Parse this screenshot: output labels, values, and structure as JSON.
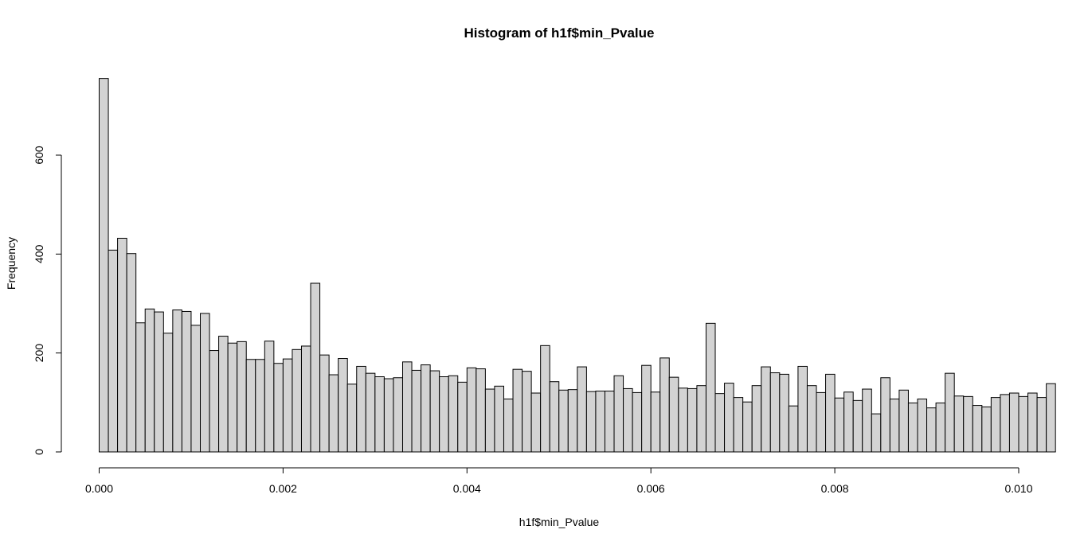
{
  "chart_data": {
    "type": "bar",
    "title": "Histogram of h1f$min_Pvalue",
    "xlabel": "h1f$min_Pvalue",
    "ylabel": "Frequency",
    "xlim": [
      0,
      0.0104
    ],
    "ylim": [
      0,
      760
    ],
    "bin_width": 0.0001,
    "x_ticks": [
      {
        "value": 0.0,
        "label": "0.000"
      },
      {
        "value": 0.002,
        "label": "0.002"
      },
      {
        "value": 0.004,
        "label": "0.004"
      },
      {
        "value": 0.006,
        "label": "0.006"
      },
      {
        "value": 0.008,
        "label": "0.008"
      },
      {
        "value": 0.01,
        "label": "0.010"
      }
    ],
    "y_ticks": [
      {
        "value": 0,
        "label": "0"
      },
      {
        "value": 200,
        "label": "200"
      },
      {
        "value": 400,
        "label": "400"
      },
      {
        "value": 600,
        "label": "600"
      }
    ],
    "values": [
      755,
      408,
      432,
      401,
      261,
      289,
      283,
      240,
      287,
      284,
      256,
      280,
      205,
      234,
      220,
      223,
      187,
      187,
      224,
      179,
      188,
      207,
      214,
      341,
      196,
      156,
      189,
      137,
      173,
      159,
      152,
      148,
      150,
      182,
      165,
      176,
      164,
      152,
      154,
      141,
      170,
      168,
      127,
      133,
      107,
      167,
      163,
      119,
      215,
      142,
      125,
      126,
      172,
      122,
      123,
      123,
      154,
      128,
      120,
      175,
      121,
      190,
      151,
      129,
      128,
      134,
      260,
      118,
      139,
      110,
      101,
      134,
      172,
      160,
      157,
      93,
      173,
      134,
      120,
      157,
      109,
      121,
      104,
      127,
      77,
      150,
      107,
      125,
      99,
      107,
      89,
      99,
      159,
      113,
      112,
      94,
      91,
      110,
      116,
      119,
      112,
      119,
      110,
      138
    ],
    "bar_fill": "#d3d3d3",
    "bar_stroke": "#000000",
    "grid": false,
    "legend": "none"
  }
}
